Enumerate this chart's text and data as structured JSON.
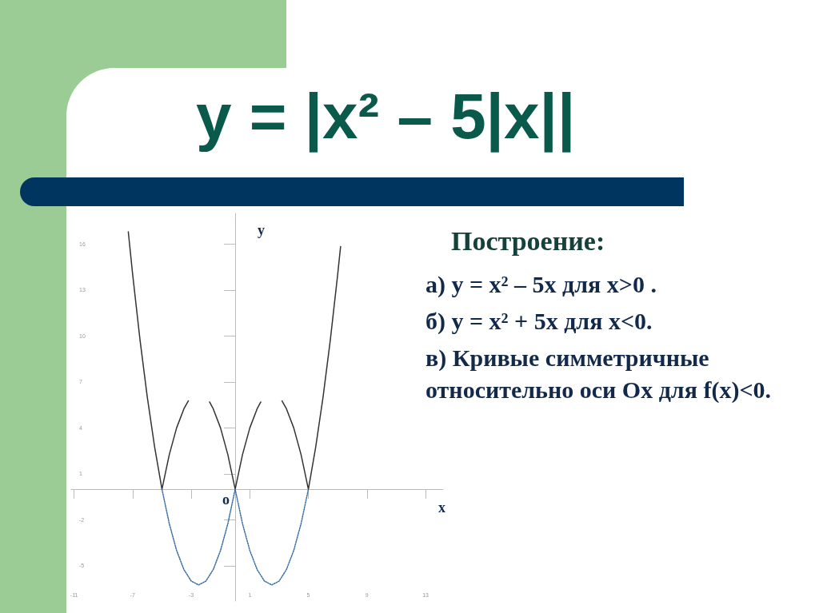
{
  "chart_data": {
    "type": "line",
    "title": "y = |x² – 5|x||",
    "xlabel": "x",
    "ylabel": "y",
    "xlim": [
      -11.2,
      14.2
    ],
    "ylim": [
      -7.3,
      18
    ],
    "xticks": [
      -11,
      -7,
      -3,
      1,
      5,
      9,
      13
    ],
    "yticks": [
      -5,
      -2,
      1,
      4,
      7,
      10,
      13,
      16
    ],
    "grid": false,
    "marker": "none",
    "series": [
      {
        "color": "#333333",
        "line_style": "solid",
        "x": [
          -7.3,
          -7,
          -6.5,
          -6,
          -5.5,
          -5,
          -4.5,
          -4,
          -3.5,
          -3.2,
          -2.5,
          -1.75,
          -1.5,
          -1,
          -0.5,
          0,
          0.5,
          1,
          1.5,
          1.75,
          2.5,
          3.2,
          3.5,
          4,
          4.5,
          5,
          5.5,
          6,
          6.5,
          7,
          7.2
        ],
        "values": [
          16.8,
          14,
          9.75,
          6,
          2.75,
          0,
          2.25,
          4,
          5.25,
          5.76,
          null,
          5.69,
          5.25,
          4,
          2.25,
          0,
          2.25,
          4,
          5.25,
          5.69,
          null,
          5.76,
          5.25,
          4,
          2.25,
          0,
          2.75,
          6,
          9.75,
          14,
          15.84
        ]
      },
      {
        "color": "#3a6ea5",
        "line_style": "dotted",
        "x": [
          -5,
          -4.5,
          -4,
          -3.5,
          -3,
          -2.5,
          -2,
          -1.5,
          -1,
          -0.5,
          0
        ],
        "values": [
          0,
          -2.25,
          -4,
          -5.25,
          -6,
          -6.25,
          -6,
          -5.25,
          -4,
          -2.25,
          0
        ]
      },
      {
        "color": "#3a6ea5",
        "line_style": "dotted",
        "x": [
          0,
          0.5,
          1,
          1.5,
          2,
          2.5,
          3,
          3.5,
          4,
          4.5,
          5
        ],
        "values": [
          0,
          -2.25,
          -4,
          -5.25,
          -6,
          -6.25,
          -6,
          -5.25,
          -4,
          -2.25,
          0
        ]
      }
    ],
    "annotations": [
      {
        "text": "o",
        "x": 0,
        "y": 0
      },
      "Построение:",
      "а) y = x² – 5x для x>0 .",
      "б) y = x² + 5x для x<0.",
      "в) Кривые симметричные относительно оси Ох для f(x)<0."
    ]
  }
}
